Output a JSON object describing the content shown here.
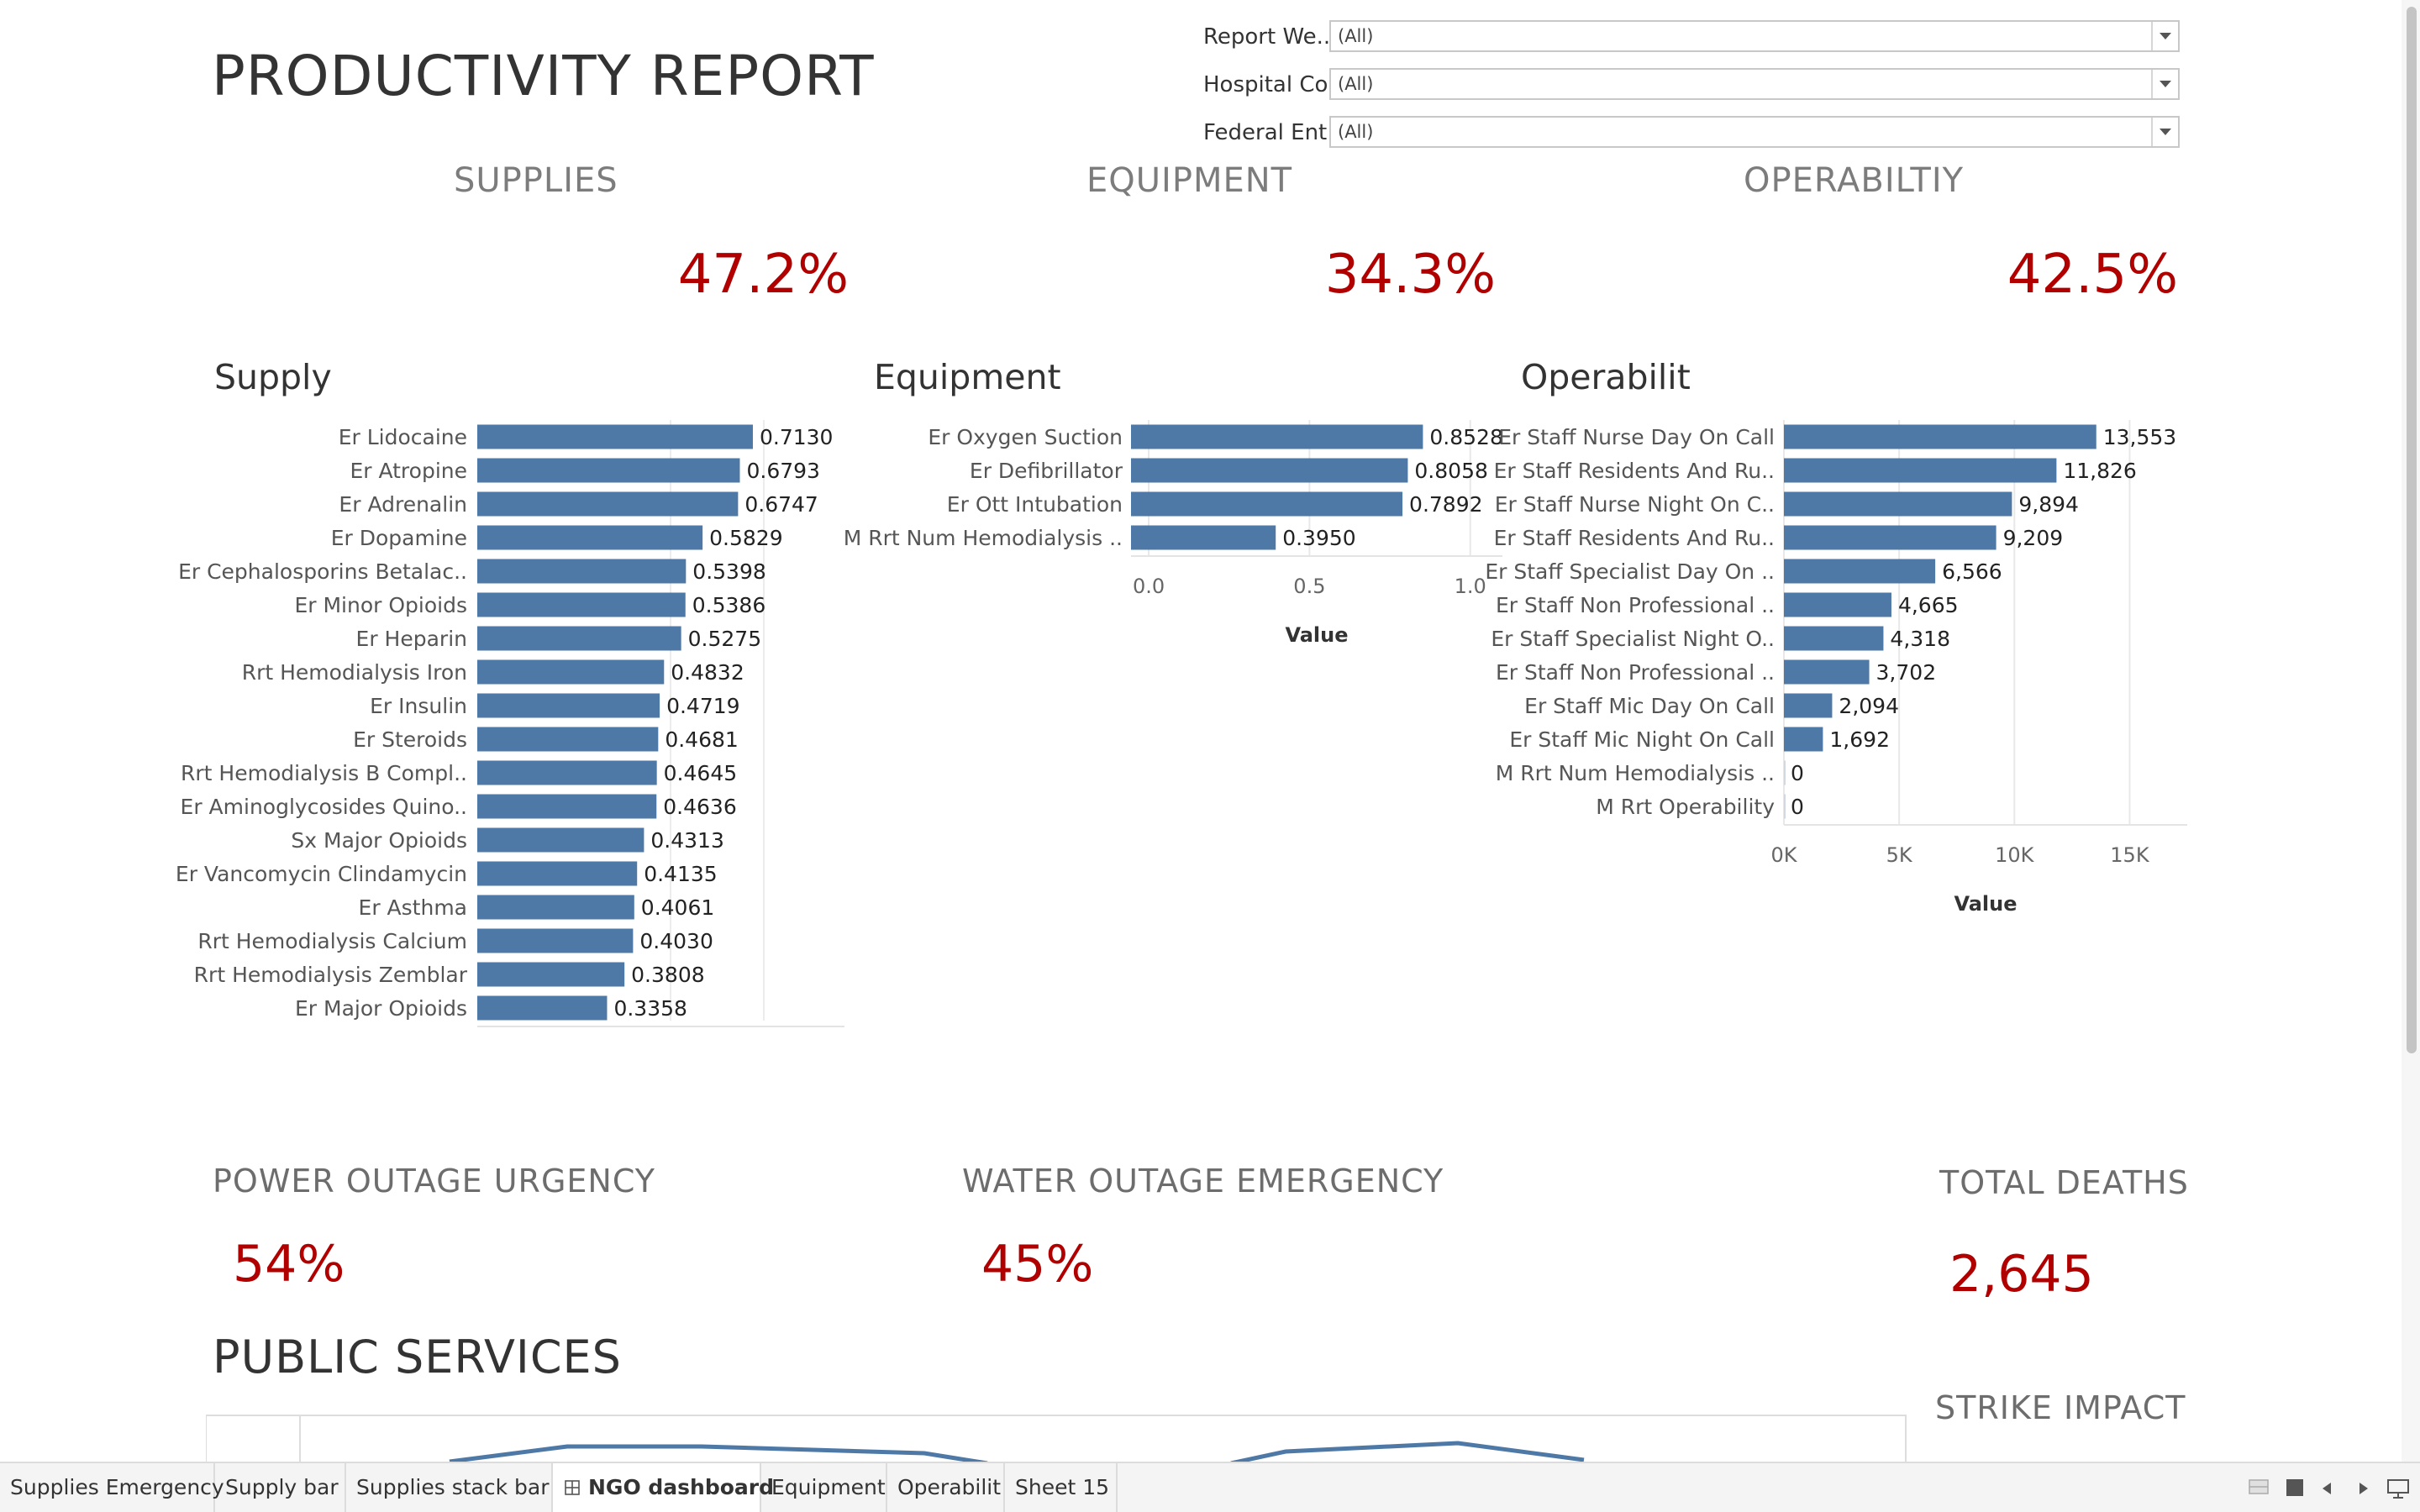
{
  "report": {
    "title": "PRODUCTIVITY REPORT"
  },
  "filters": [
    {
      "label": "Report We..",
      "value": "(All)"
    },
    {
      "label": "Hospital Co..",
      "value": "(All)"
    },
    {
      "label": "Federal Ent..",
      "value": "(All)"
    }
  ],
  "kpis": [
    {
      "title": "SUPPLIES",
      "value": "47.2%"
    },
    {
      "title": "EQUIPMENT",
      "value": "34.3%"
    },
    {
      "title": "OPERABILTIY",
      "value": "42.5%"
    }
  ],
  "chart_data": [
    {
      "type": "bar",
      "orientation": "horizontal",
      "title": "Supply",
      "categories": [
        "Er Lidocaine",
        "Er Atropine",
        "Er Adrenalin",
        "Er Dopamine",
        "Er Cephalosporins Betalac..",
        "Er Minor Opioids",
        "Er Heparin",
        "Rrt Hemodialysis Iron",
        "Er Insulin",
        "Er Steroids",
        "Rrt Hemodialysis B Compl..",
        "Er Aminoglycosides Quino..",
        "Sx Major Opioids",
        "Er Vancomycin Clindamycin",
        "Er Asthma",
        "Rrt Hemodialysis Calcium",
        "Rrt Hemodialysis Zemblar",
        "Er Major Opioids"
      ],
      "values": [
        0.713,
        0.6793,
        0.6747,
        0.5829,
        0.5398,
        0.5386,
        0.5275,
        0.4832,
        0.4719,
        0.4681,
        0.4645,
        0.4636,
        0.4313,
        0.4135,
        0.4061,
        0.403,
        0.3808,
        0.3358
      ],
      "labels": [
        "0.7130",
        "0.6793",
        "0.6747",
        "0.5829",
        "0.5398",
        "0.5386",
        "0.5275",
        "0.4832",
        "0.4719",
        "0.4681",
        "0.4645",
        "0.4636",
        "0.4313",
        "0.4135",
        "0.4061",
        "0.4030",
        "0.3808",
        "0.3358"
      ],
      "xlim": [
        0,
        0.95
      ],
      "xticks": [],
      "xlabel": "",
      "grid": true,
      "color": "#4e79a7"
    },
    {
      "type": "bar",
      "orientation": "horizontal",
      "title": "Equipment",
      "categories": [
        "Er Oxygen Suction",
        "Er Defibrillator",
        "Er Ott Intubation",
        "M Rrt Num Hemodialysis .."
      ],
      "values": [
        0.8528,
        0.8058,
        0.7892,
        0.395
      ],
      "labels": [
        "0.8528",
        "0.8058",
        "0.7892",
        "0.3950"
      ],
      "xlim": [
        -0.055,
        1.1
      ],
      "xticks": [
        {
          "v": 0,
          "label": "0.0"
        },
        {
          "v": 0.5,
          "label": "0.5"
        },
        {
          "v": 1,
          "label": "1.0"
        }
      ],
      "xlabel": "Value",
      "grid": true,
      "color": "#4e79a7"
    },
    {
      "type": "bar",
      "orientation": "horizontal",
      "title": "Operabilit",
      "categories": [
        "Er Staff Nurse Day On Call",
        "Er Staff Residents And Ru..",
        "Er Staff Nurse Night On C..",
        "Er Staff Residents And Ru..",
        "Er Staff Specialist Day On ..",
        "Er Staff Non Professional ..",
        "Er Staff Specialist Night O..",
        "Er Staff Non Professional ..",
        "Er Staff Mic Day On Call",
        "Er Staff Mic Night On Call",
        "M Rrt Num Hemodialysis ..",
        "M Rrt Operability"
      ],
      "values": [
        13553,
        11826,
        9894,
        9209,
        6566,
        4665,
        4318,
        3702,
        2094,
        1692,
        0,
        0
      ],
      "labels": [
        "13,553",
        "11,826",
        "9,894",
        "9,209",
        "6,566",
        "4,665",
        "4,318",
        "3,702",
        "2,094",
        "1,692",
        "0",
        "0"
      ],
      "xlim": [
        0,
        17500
      ],
      "xticks": [
        {
          "v": 0,
          "label": "0K"
        },
        {
          "v": 5000,
          "label": "5K"
        },
        {
          "v": 10000,
          "label": "10K"
        },
        {
          "v": 15000,
          "label": "15K"
        }
      ],
      "xlabel": "Value",
      "grid": true,
      "color": "#4e79a7"
    }
  ],
  "urgency": {
    "power": {
      "title": "POWER OUTAGE URGENCY",
      "value": "54%"
    },
    "water": {
      "title": "WATER OUTAGE EMERGENCY",
      "value": "45%"
    },
    "deaths": {
      "title": "TOTAL DEATHS",
      "value": "2,645"
    }
  },
  "public": {
    "title": "PUBLIC SERVICES",
    "strike_title": "STRIKE IMPACT"
  },
  "tabs": [
    {
      "label": "Supplies Emergency",
      "active": false
    },
    {
      "label": "Supply bar",
      "active": false
    },
    {
      "label": "Supplies stack bar",
      "active": false
    },
    {
      "label": "NGO dashboard",
      "active": true
    },
    {
      "label": "Equipment",
      "active": false
    },
    {
      "label": "Operabilit",
      "active": false
    },
    {
      "label": "Sheet 15",
      "active": false
    }
  ],
  "colors": {
    "accent": "#b00000",
    "bar": "#4e79a7",
    "line": "#4e79a7"
  },
  "icons": [
    "dropdown-arrow-icon",
    "dashboard-grid-icon",
    "view-sheet-icon",
    "view-full-icon",
    "prev-arrow-icon",
    "next-arrow-icon",
    "presentation-icon"
  ]
}
